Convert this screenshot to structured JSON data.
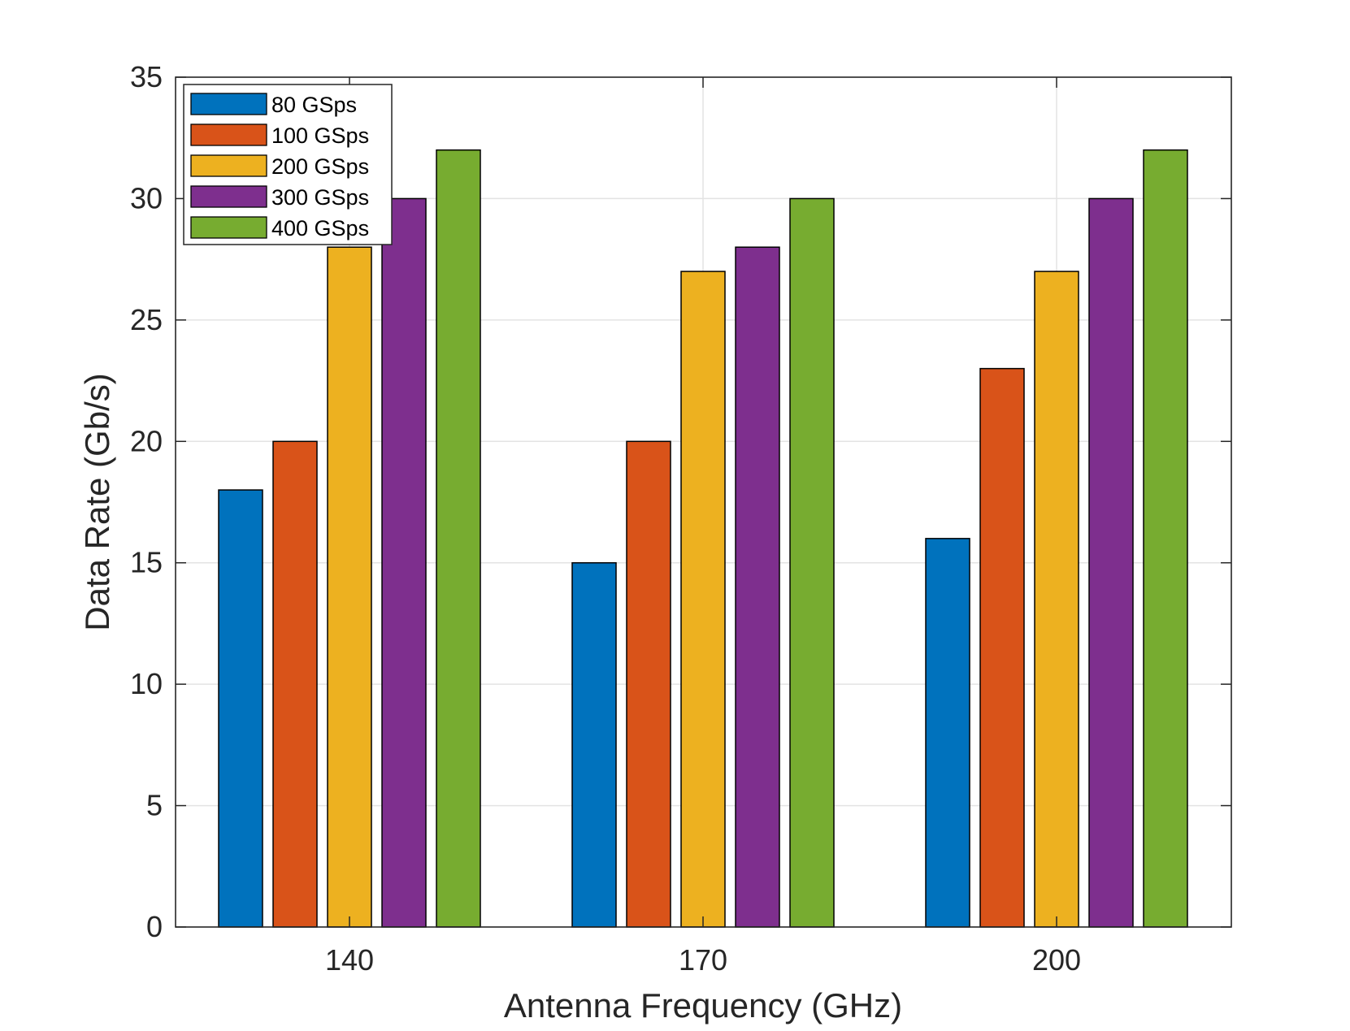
{
  "chart_data": {
    "type": "bar",
    "xlabel": "Antenna Frequency (GHz)",
    "ylabel": "Data Rate (Gb/s)",
    "categories": [
      "140",
      "170",
      "200"
    ],
    "ylim": [
      0,
      35
    ],
    "yticks": [
      0,
      5,
      10,
      15,
      20,
      25,
      30,
      35
    ],
    "grid": true,
    "legend_position": "top-left",
    "series": [
      {
        "name": "80 GSps",
        "color": "#0072BD",
        "values": [
          18,
          15,
          16
        ]
      },
      {
        "name": "100 GSps",
        "color": "#D95319",
        "values": [
          20,
          20,
          23
        ]
      },
      {
        "name": "200 GSps",
        "color": "#EDB120",
        "values": [
          28,
          27,
          27
        ]
      },
      {
        "name": "300 GSps",
        "color": "#7E2F8E",
        "values": [
          30,
          28,
          30
        ]
      },
      {
        "name": "400 GSps",
        "color": "#77AC30",
        "values": [
          32,
          30,
          32
        ]
      }
    ]
  }
}
